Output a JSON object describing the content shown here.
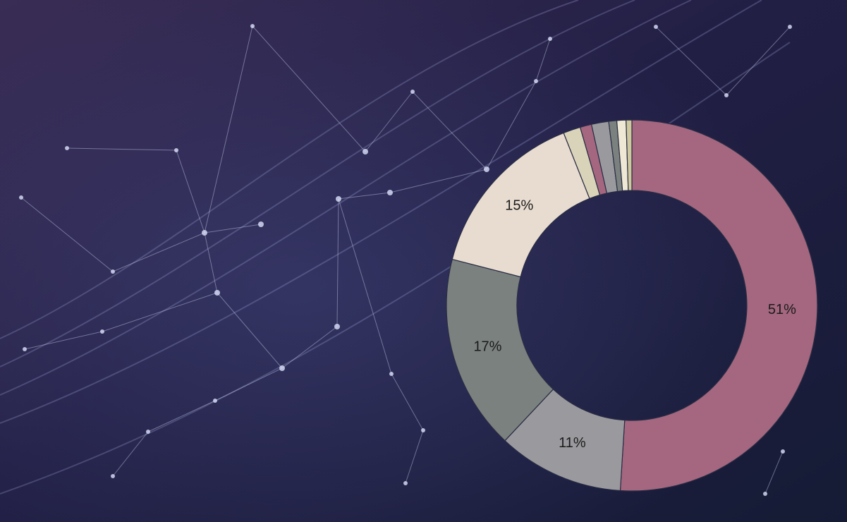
{
  "chart_data": {
    "type": "donut",
    "values": [
      51,
      11,
      17,
      15,
      1.5,
      1,
      1.5,
      0.7,
      0.8,
      0.5
    ],
    "value_labels": [
      "51%",
      "11%",
      "17%",
      "15%",
      null,
      null,
      null,
      null,
      null,
      null
    ],
    "colors": [
      "#a4677f",
      "#9a9a9e",
      "#7b817e",
      "#e8dcd0",
      "#d9d4b9",
      "#a4677f",
      "#9a9a9e",
      "#7b817e",
      "#efe8d4",
      "#d0c9a0"
    ]
  }
}
